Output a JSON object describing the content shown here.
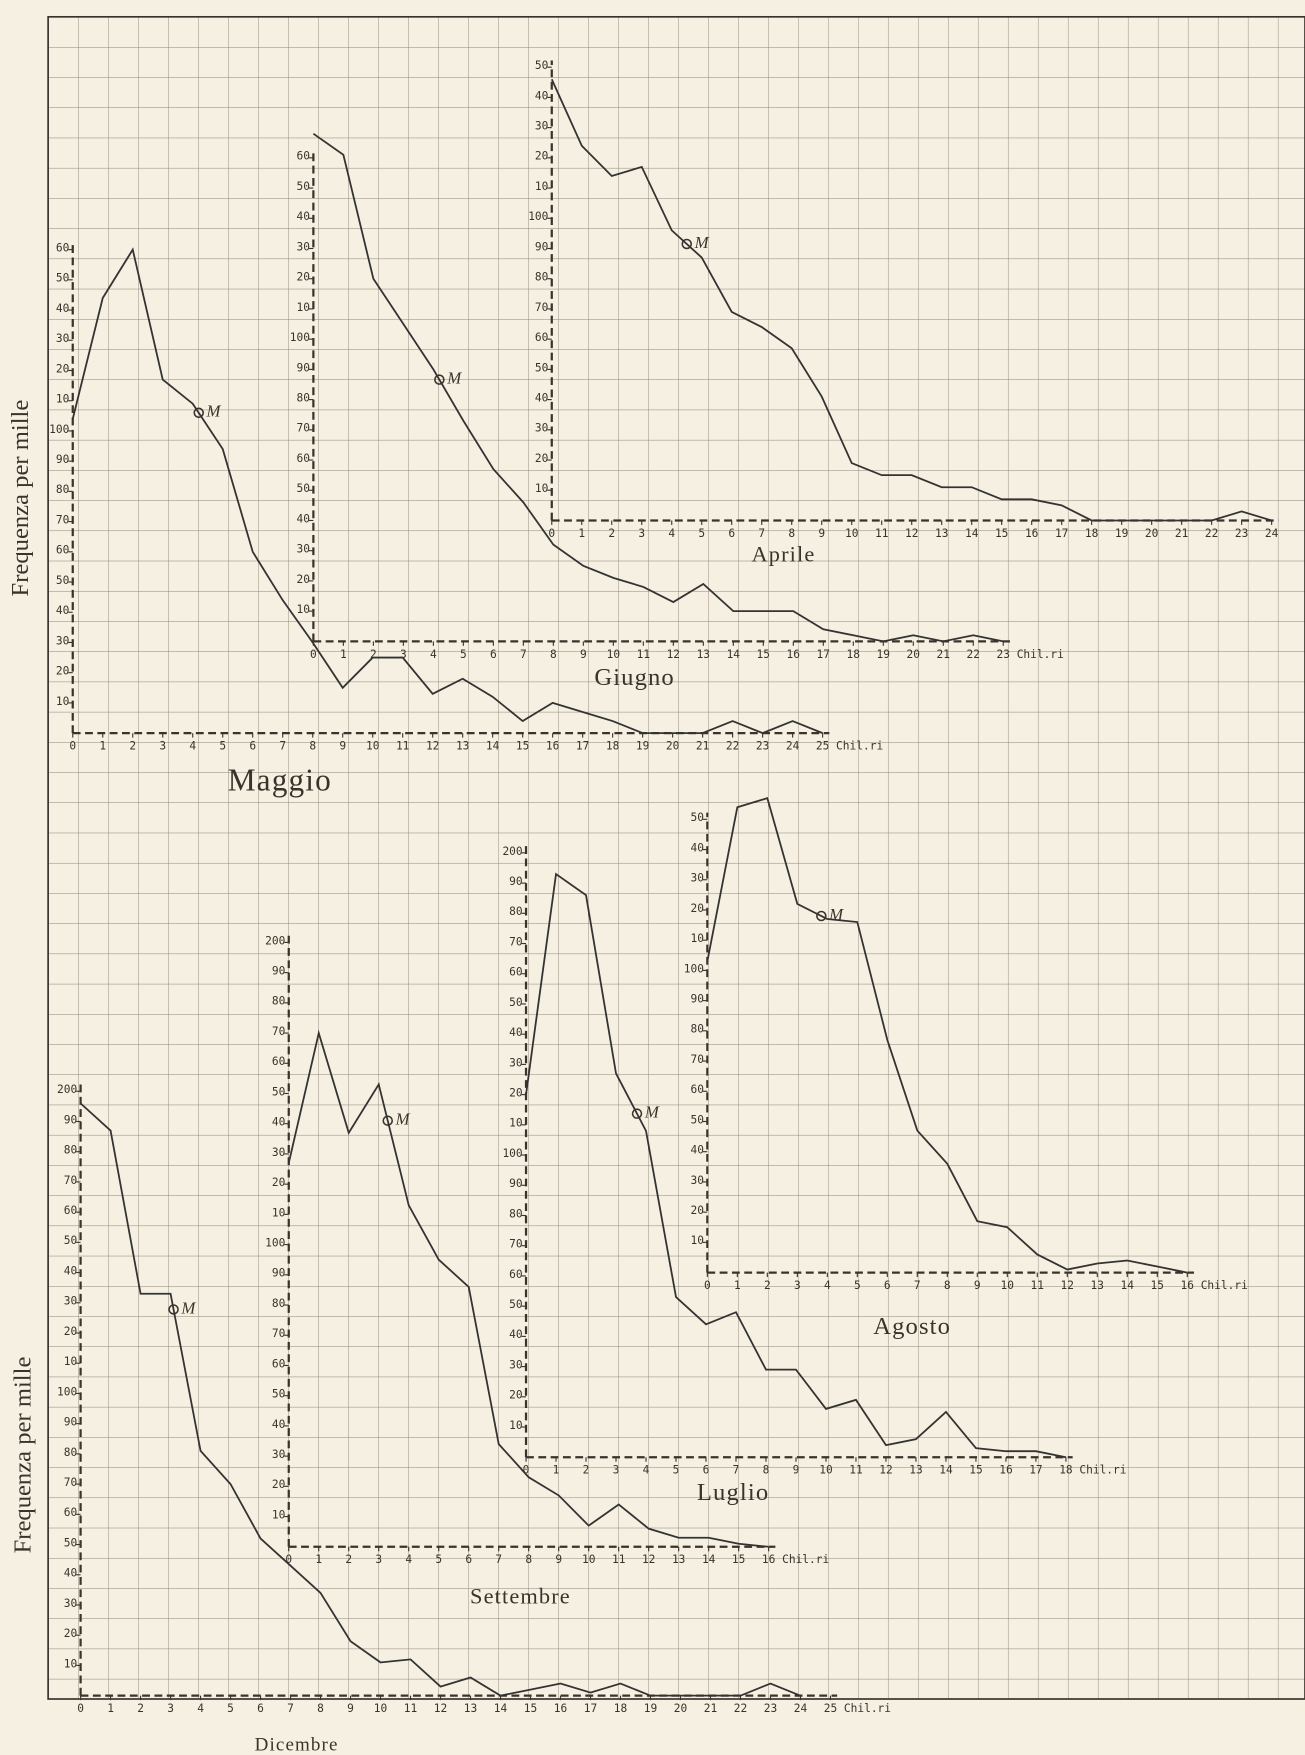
{
  "ylabels": [
    "Frequenza per mille",
    "Frequenza per mille"
  ],
  "chart_data": [
    {
      "type": "line",
      "name": "Maggio",
      "color": "#333333",
      "unit": "Chil.ri",
      "mean_x": 4.2,
      "mean_label": "M",
      "x": [
        0,
        1,
        2,
        3,
        4,
        5,
        6,
        7,
        8,
        9,
        10,
        11,
        12,
        13,
        14,
        15,
        16,
        17,
        18,
        19,
        20,
        21,
        22,
        23,
        24,
        25
      ],
      "values": [
        104,
        144,
        160,
        117,
        109,
        94,
        60,
        44,
        30,
        15,
        25,
        25,
        13,
        18,
        12,
        4,
        10,
        7,
        4,
        0,
        0,
        0,
        4,
        0,
        4,
        0
      ],
      "xlim": [
        0,
        25
      ],
      "ylim": [
        0,
        160
      ],
      "yticks": [
        10,
        20,
        30,
        40,
        50,
        60,
        70,
        80,
        90,
        100,
        {
          "value": 110,
          "label": "10"
        },
        {
          "value": 120,
          "label": "20"
        },
        {
          "value": 130,
          "label": "30"
        },
        {
          "value": 140,
          "label": "40"
        },
        {
          "value": 150,
          "label": "50"
        },
        {
          "value": 160,
          "label": "60"
        }
      ]
    },
    {
      "type": "line",
      "name": "Giugno",
      "color": "#333333",
      "unit": "Chil.ri",
      "mean_x": 4.2,
      "mean_label": "M",
      "x": [
        0,
        1,
        2,
        3,
        4,
        5,
        6,
        7,
        8,
        9,
        10,
        11,
        12,
        13,
        14,
        15,
        16,
        17,
        18,
        19,
        20,
        21,
        22,
        23
      ],
      "values": [
        168,
        161,
        120,
        105,
        90,
        73,
        57,
        46,
        32,
        25,
        21,
        18,
        13,
        19,
        10,
        10,
        10,
        4,
        2,
        0,
        2,
        0,
        2,
        0
      ],
      "xlim": [
        0,
        23
      ],
      "ylim": [
        0,
        160
      ],
      "yticks": [
        10,
        20,
        30,
        40,
        50,
        60,
        70,
        80,
        90,
        100,
        {
          "value": 110,
          "label": "10"
        },
        {
          "value": 120,
          "label": "20"
        },
        {
          "value": 130,
          "label": "30"
        },
        {
          "value": 140,
          "label": "40"
        },
        {
          "value": 150,
          "label": "50"
        },
        {
          "value": 160,
          "label": "60"
        }
      ]
    },
    {
      "type": "line",
      "name": "Aprile",
      "color": "#333333",
      "mean_x": 4.5,
      "mean_label": "M",
      "x": [
        0,
        1,
        2,
        3,
        4,
        5,
        6,
        7,
        8,
        9,
        10,
        11,
        12,
        13,
        14,
        15,
        16,
        17,
        18,
        19,
        20,
        21,
        22,
        23,
        24
      ],
      "values": [
        146,
        124,
        114,
        117,
        96,
        87,
        69,
        64,
        57,
        41,
        19,
        15,
        15,
        11,
        11,
        7,
        7,
        5,
        0,
        0,
        0,
        0,
        0,
        3,
        0
      ],
      "xlim": [
        0,
        24
      ],
      "ylim": [
        0,
        150
      ],
      "yticks": [
        10,
        20,
        30,
        40,
        50,
        60,
        70,
        80,
        90,
        100,
        {
          "value": 110,
          "label": "10"
        },
        {
          "value": 120,
          "label": "20"
        },
        {
          "value": 130,
          "label": "30"
        },
        {
          "value": 140,
          "label": "40"
        },
        {
          "value": 150,
          "label": "50"
        }
      ]
    },
    {
      "type": "line",
      "name": "Agosto",
      "color": "#333333",
      "unit": "Chil.ri",
      "mean_x": 3.8,
      "mean_label": "M",
      "x": [
        0,
        1,
        2,
        3,
        4,
        5,
        6,
        7,
        8,
        9,
        10,
        11,
        12,
        13,
        14,
        15,
        16
      ],
      "values": [
        103,
        154,
        157,
        122,
        117,
        116,
        77,
        47,
        36,
        17,
        15,
        6,
        1,
        3,
        4,
        2,
        0
      ],
      "xlim": [
        0,
        16
      ],
      "ylim": [
        0,
        150
      ],
      "yticks": [
        10,
        20,
        30,
        40,
        50,
        60,
        70,
        80,
        90,
        100,
        {
          "value": 110,
          "label": "10"
        },
        {
          "value": 120,
          "label": "20"
        },
        {
          "value": 130,
          "label": "30"
        },
        {
          "value": 140,
          "label": "40"
        },
        {
          "value": 150,
          "label": "50"
        }
      ]
    },
    {
      "type": "line",
      "name": "Luglio",
      "color": "#333333",
      "unit": "Chil.ri",
      "mean_x": 3.7,
      "mean_label": "M",
      "x": [
        0,
        1,
        2,
        3,
        4,
        5,
        6,
        7,
        8,
        9,
        10,
        11,
        12,
        13,
        14,
        15,
        16,
        17,
        18
      ],
      "values": [
        120,
        193,
        186,
        127,
        108,
        53,
        44,
        48,
        29,
        29,
        16,
        19,
        4,
        6,
        15,
        3,
        2,
        2,
        0
      ],
      "xlim": [
        0,
        18
      ],
      "ylim": [
        0,
        200
      ],
      "yticks": [
        10,
        20,
        30,
        40,
        50,
        60,
        70,
        80,
        90,
        100,
        {
          "value": 110,
          "label": "10"
        },
        {
          "value": 120,
          "label": "20"
        },
        {
          "value": 130,
          "label": "30"
        },
        {
          "value": 140,
          "label": "40"
        },
        {
          "value": 150,
          "label": "50"
        },
        {
          "value": 160,
          "label": "60"
        },
        {
          "value": 170,
          "label": "70"
        },
        {
          "value": 180,
          "label": "80"
        },
        {
          "value": 190,
          "label": "90"
        },
        200
      ]
    },
    {
      "type": "line",
      "name": "Settembre",
      "color": "#333333",
      "unit": "Chil.ri",
      "mean_x": 3.3,
      "mean_label": "M",
      "x": [
        0,
        1,
        2,
        3,
        4,
        5,
        6,
        7,
        8,
        9,
        10,
        11,
        12,
        13,
        14,
        15,
        16
      ],
      "values": [
        127,
        170,
        137,
        153,
        113,
        95,
        86,
        34,
        23,
        17,
        7,
        14,
        6,
        3,
        3,
        1,
        0
      ],
      "xlim": [
        0,
        16
      ],
      "ylim": [
        0,
        200
      ],
      "yticks": [
        10,
        20,
        30,
        40,
        50,
        60,
        70,
        80,
        90,
        100,
        {
          "value": 110,
          "label": "10"
        },
        {
          "value": 120,
          "label": "20"
        },
        {
          "value": 130,
          "label": "30"
        },
        {
          "value": 140,
          "label": "40"
        },
        {
          "value": 150,
          "label": "50"
        },
        {
          "value": 160,
          "label": "60"
        },
        {
          "value": 170,
          "label": "70"
        },
        {
          "value": 180,
          "label": "80"
        },
        {
          "value": 190,
          "label": "90"
        },
        200
      ]
    },
    {
      "type": "line",
      "name": "Dicembre",
      "color": "#333333",
      "unit": "Chil.ri",
      "mean_x": 3.1,
      "mean_label": "M",
      "x": [
        0,
        1,
        2,
        3,
        4,
        5,
        6,
        7,
        8,
        9,
        10,
        11,
        12,
        13,
        14,
        15,
        16,
        17,
        18,
        19,
        20,
        21,
        22,
        23,
        24,
        25
      ],
      "values": [
        196,
        187,
        133,
        133,
        81,
        70,
        52,
        43,
        34,
        18,
        11,
        12,
        3,
        6,
        0,
        2,
        4,
        1,
        4,
        0,
        0,
        0,
        0,
        4,
        0,
        null
      ],
      "xlim": [
        0,
        25
      ],
      "ylim": [
        0,
        200
      ],
      "yticks": [
        10,
        20,
        30,
        40,
        50,
        60,
        70,
        80,
        90,
        100,
        {
          "value": 110,
          "label": "10"
        },
        {
          "value": 120,
          "label": "20"
        },
        {
          "value": 130,
          "label": "30"
        },
        {
          "value": 140,
          "label": "40"
        },
        {
          "value": 150,
          "label": "50"
        },
        {
          "value": 160,
          "label": "60"
        },
        {
          "value": 170,
          "label": "70"
        },
        {
          "value": 180,
          "label": "80"
        },
        {
          "value": 190,
          "label": "90"
        },
        200
      ]
    }
  ]
}
